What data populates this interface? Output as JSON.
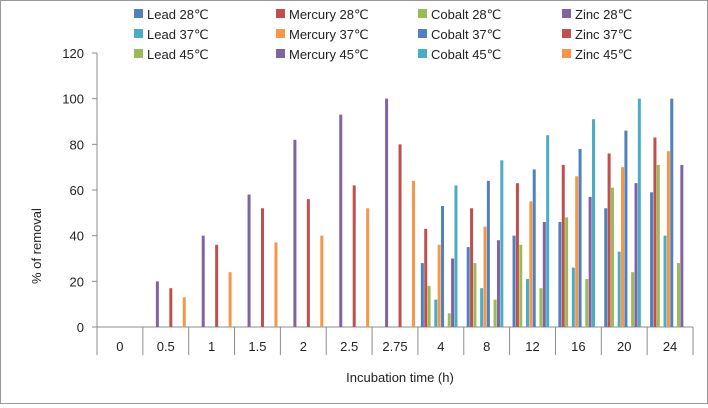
{
  "chart_data": {
    "type": "bar",
    "xlabel": "Incubation time (h)",
    "ylabel": "% of removal",
    "ylim": [
      0,
      120
    ],
    "yticks": [
      0,
      20,
      40,
      60,
      80,
      100,
      120
    ],
    "grid": false,
    "legend_position": "top",
    "categories": [
      "0",
      "0.5",
      "1",
      "1.5",
      "2",
      "2.5",
      "2.75",
      "4",
      "8",
      "12",
      "16",
      "20",
      "24"
    ],
    "series": [
      {
        "name": "Lead 28℃",
        "color": "#4f81bd",
        "values": [
          0,
          0,
          0,
          0,
          0,
          0,
          0,
          28,
          35,
          40,
          46,
          52,
          59
        ]
      },
      {
        "name": "Mercury 28℃",
        "color": "#c0504d",
        "values": [
          0,
          0,
          0,
          0,
          0,
          0,
          0,
          43,
          52,
          63,
          71,
          76,
          83
        ]
      },
      {
        "name": "Cobalt 28℃",
        "color": "#9bbb59",
        "values": [
          0,
          0,
          0,
          0,
          0,
          0,
          0,
          18,
          28,
          36,
          48,
          61,
          71
        ]
      },
      {
        "name": "Zinc 28℃",
        "color": "#8064a2",
        "values": [
          0,
          20,
          40,
          58,
          82,
          93,
          100,
          0,
          0,
          0,
          0,
          0,
          0
        ]
      },
      {
        "name": "Lead 37℃",
        "color": "#4bacc6",
        "values": [
          0,
          0,
          0,
          0,
          0,
          0,
          0,
          12,
          17,
          21,
          26,
          33,
          40
        ]
      },
      {
        "name": "Mercury 37℃",
        "color": "#f79646",
        "values": [
          0,
          0,
          0,
          0,
          0,
          0,
          0,
          36,
          44,
          55,
          66,
          70,
          77
        ]
      },
      {
        "name": "Cobalt 37℃",
        "color": "#4f81bd",
        "values": [
          0,
          0,
          0,
          0,
          0,
          0,
          0,
          53,
          64,
          69,
          78,
          86,
          100
        ]
      },
      {
        "name": "Zinc 37℃",
        "color": "#c0504d",
        "values": [
          0,
          17,
          36,
          52,
          56,
          62,
          80,
          0,
          0,
          0,
          0,
          0,
          0
        ]
      },
      {
        "name": "Lead 45℃",
        "color": "#9bbb59",
        "values": [
          0,
          0,
          0,
          0,
          0,
          0,
          0,
          6,
          12,
          17,
          21,
          24,
          28
        ]
      },
      {
        "name": "Mercury 45℃",
        "color": "#8064a2",
        "values": [
          0,
          0,
          0,
          0,
          0,
          0,
          0,
          30,
          38,
          46,
          57,
          63,
          71
        ]
      },
      {
        "name": "Cobalt 45℃",
        "color": "#4bacc6",
        "values": [
          0,
          0,
          0,
          0,
          0,
          0,
          0,
          62,
          73,
          84,
          91,
          100,
          0
        ]
      },
      {
        "name": "Zinc 45℃",
        "color": "#f79646",
        "values": [
          0,
          13,
          24,
          37,
          40,
          52,
          64,
          0,
          0,
          0,
          0,
          0,
          0
        ]
      }
    ]
  }
}
